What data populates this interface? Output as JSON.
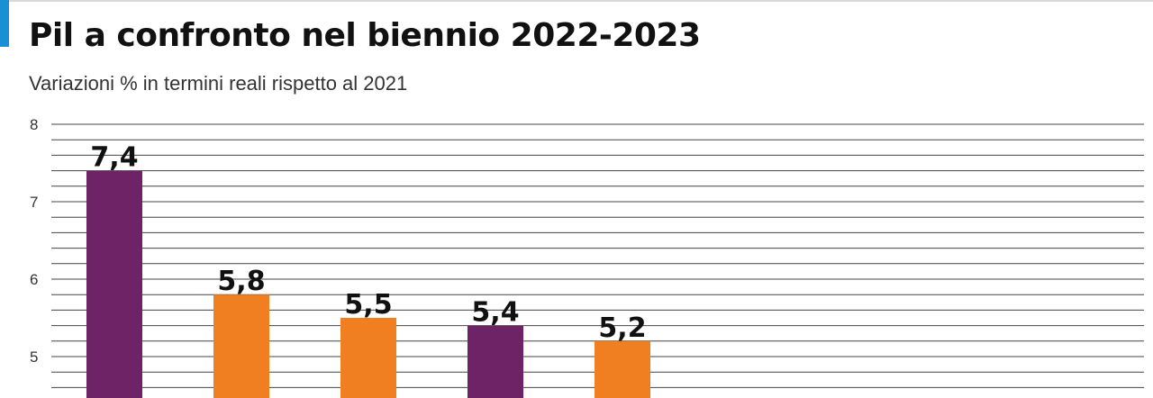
{
  "chart_data": {
    "type": "bar",
    "title": "Pil a confronto nel biennio 2022-2023",
    "subtitle": "Variazioni % in termini reali rispetto al 2021",
    "xlabel": "",
    "ylabel": "",
    "ylim": [
      4.5,
      8
    ],
    "y_ticks": [
      {
        "value": 8,
        "label": "8"
      },
      {
        "value": 7,
        "label": "7"
      },
      {
        "value": 6,
        "label": "6"
      },
      {
        "value": 5,
        "label": "5"
      }
    ],
    "minor_gridline_step": 0.2,
    "grid": true,
    "values": [
      7.4,
      5.8,
      5.5,
      5.4,
      5.2
    ],
    "value_labels": [
      "7,4",
      "5,8",
      "5,5",
      "5,4",
      "5,2"
    ],
    "bar_colors": [
      "#6e2367",
      "#f07f22",
      "#f07f22",
      "#6e2367",
      "#f07f22"
    ]
  },
  "colors": {
    "accent": "#1a8fd6",
    "purple": "#6e2367",
    "orange": "#f07f22",
    "grid": "#444444"
  }
}
